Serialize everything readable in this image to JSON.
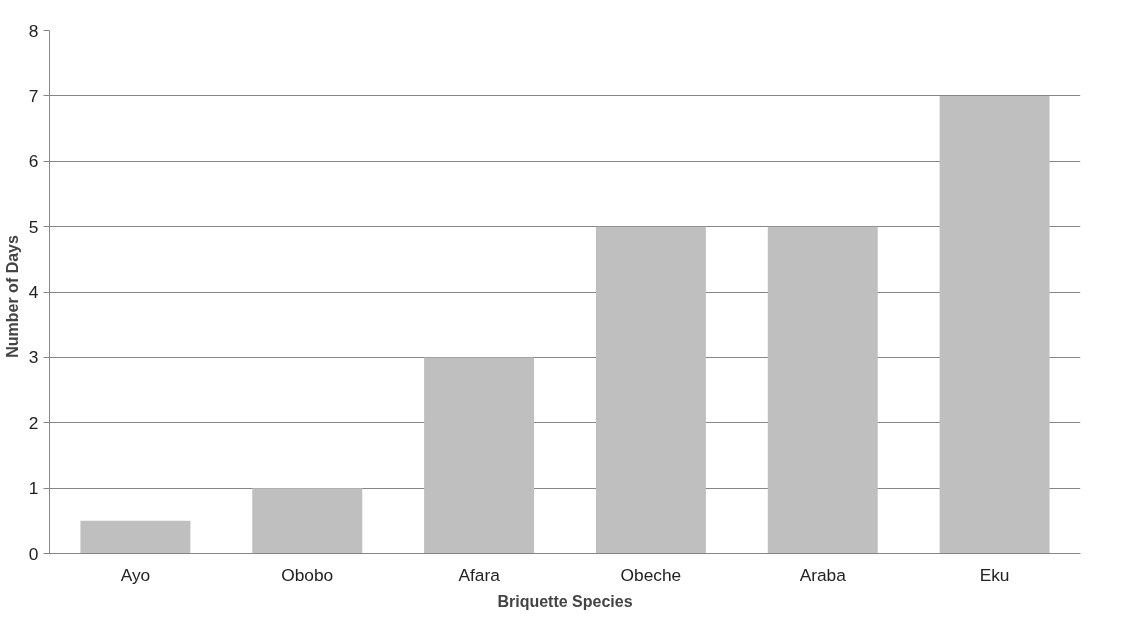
{
  "chart_data": {
    "type": "bar",
    "xlabel": "Briquette Species",
    "ylabel": "Number  of  Days",
    "categories": [
      "Ayo",
      "Obobo",
      "Afara",
      "Obeche",
      "Araba",
      "Eku"
    ],
    "values": [
      0.5,
      1,
      3,
      5,
      5,
      7
    ],
    "color": "#bfbfbf",
    "ylim": [
      0,
      8
    ],
    "yticks": [
      0,
      1,
      2,
      3,
      4,
      5,
      6,
      7,
      8
    ],
    "grid": "y"
  }
}
